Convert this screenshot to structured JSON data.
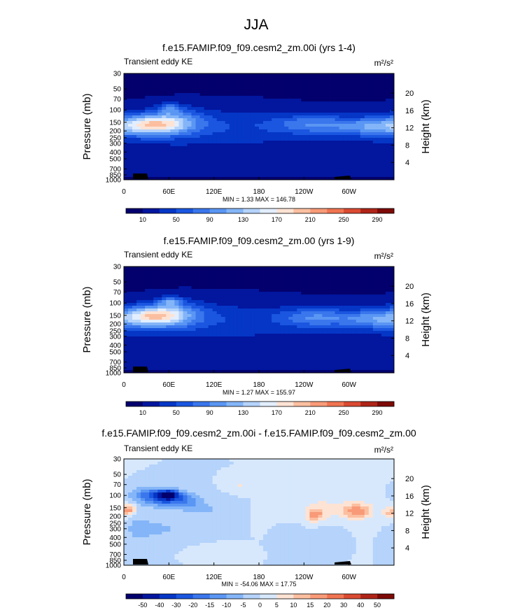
{
  "title": "JJA",
  "palettes": {
    "ke": [
      "#03006d",
      "#02169e",
      "#0536c6",
      "#1a56e0",
      "#3a76ec",
      "#5a96f3",
      "#84b5f8",
      "#b5d3fb",
      "#e2eefe",
      "#fde3d4",
      "#fbbfa0",
      "#f89a78",
      "#f07451",
      "#da4a32",
      "#b02418",
      "#7d0a06"
    ],
    "diff": [
      "#03006d",
      "#02169e",
      "#0536c6",
      "#1a56e0",
      "#3a76ec",
      "#5a96f3",
      "#84b5f8",
      "#b5d3fb",
      "#d7e8fd",
      "#fde3d4",
      "#fbbfa0",
      "#f89a78",
      "#f07451",
      "#da4a32",
      "#b02418",
      "#7d0a06"
    ]
  },
  "panels": [
    {
      "id": "p1",
      "title": "f.e15.FAMIP.f09_f09.cesm2_zm.00i (yrs 1-4)",
      "label": "Transient eddy KE",
      "units": "m²/s²",
      "stats": "MIN =   1.33  MAX = 146.78",
      "colorbar_labels": [
        "10",
        "50",
        "90",
        "130",
        "170",
        "210",
        "250",
        "290"
      ],
      "chart_data": {
        "type": "heatmap",
        "field": "Transient eddy KE",
        "units": "m2/s2",
        "min": 1.33,
        "max": 146.78,
        "levels": [
          10,
          30,
          50,
          70,
          90,
          110,
          130,
          150,
          170,
          190,
          210,
          230,
          250,
          270,
          290
        ],
        "bg_value": 8,
        "features": [
          {
            "lon": 40,
            "p": 160,
            "amp": 110,
            "wlon": 28,
            "wlog": 0.22
          },
          {
            "lon": 62,
            "p": 95,
            "amp": 65,
            "wlon": 10,
            "wlog": 0.12
          },
          {
            "lon": 75,
            "p": 140,
            "amp": 40,
            "wlon": 25,
            "wlog": 0.3
          },
          {
            "lon": 250,
            "p": 160,
            "amp": 62,
            "wlon": 38,
            "wlog": 0.22
          },
          {
            "lon": 330,
            "p": 175,
            "amp": 58,
            "wlon": 35,
            "wlog": 0.2
          },
          {
            "lon": 20,
            "p": 170,
            "amp": 45,
            "wlon": 45,
            "wlog": 0.3
          },
          {
            "lon": 120,
            "p": 160,
            "amp": 22,
            "wlon": 60,
            "wlog": 0.4
          },
          {
            "lon": 180,
            "p": 200,
            "amp": 20,
            "wlon": 200,
            "wlog": 0.45
          },
          {
            "lon": 180,
            "p": 500,
            "amp": 10,
            "wlon": 220,
            "wlog": 0.35
          }
        ]
      },
      "xticks": [
        "0",
        "60E",
        "120E",
        "180",
        "120W",
        "60W"
      ],
      "yticks": [
        "30",
        "50",
        "70",
        "100",
        "150",
        "200",
        "250",
        "300",
        "400",
        "500",
        "700",
        "850",
        "1000"
      ],
      "yticks_right": [
        "20",
        "16",
        "12",
        "8",
        "4"
      ],
      "ylabel": "Pressure (mb)",
      "ylabel_right": "Height (km)"
    },
    {
      "id": "p2",
      "title": "f.e15.FAMIP.f09_f09.cesm2_zm.00 (yrs 1-9)",
      "label": "Transient eddy KE",
      "units": "m²/s²",
      "stats": "MIN =   1.27  MAX = 155.97",
      "colorbar_labels": [
        "10",
        "50",
        "90",
        "130",
        "170",
        "210",
        "250",
        "290"
      ],
      "chart_data": {
        "type": "heatmap",
        "field": "Transient eddy KE",
        "units": "m2/s2",
        "min": 1.27,
        "max": 155.97,
        "levels": [
          10,
          30,
          50,
          70,
          90,
          110,
          130,
          150,
          170,
          190,
          210,
          230,
          250,
          270,
          290
        ],
        "bg_value": 8,
        "features": [
          {
            "lon": 42,
            "p": 150,
            "amp": 115,
            "wlon": 26,
            "wlog": 0.22
          },
          {
            "lon": 62,
            "p": 95,
            "amp": 72,
            "wlon": 10,
            "wlog": 0.12
          },
          {
            "lon": 75,
            "p": 140,
            "amp": 40,
            "wlon": 25,
            "wlog": 0.3
          },
          {
            "lon": 255,
            "p": 160,
            "amp": 65,
            "wlon": 35,
            "wlog": 0.22
          },
          {
            "lon": 335,
            "p": 170,
            "amp": 55,
            "wlon": 32,
            "wlog": 0.2
          },
          {
            "lon": 20,
            "p": 170,
            "amp": 45,
            "wlon": 45,
            "wlog": 0.3
          },
          {
            "lon": 120,
            "p": 160,
            "amp": 20,
            "wlon": 60,
            "wlog": 0.4
          },
          {
            "lon": 180,
            "p": 200,
            "amp": 20,
            "wlon": 200,
            "wlog": 0.45
          },
          {
            "lon": 180,
            "p": 500,
            "amp": 10,
            "wlon": 220,
            "wlog": 0.35
          }
        ]
      },
      "xticks": [
        "0",
        "60E",
        "120E",
        "180",
        "120W",
        "60W"
      ],
      "yticks": [
        "30",
        "50",
        "70",
        "100",
        "150",
        "200",
        "250",
        "300",
        "400",
        "500",
        "700",
        "850",
        "1000"
      ],
      "yticks_right": [
        "20",
        "16",
        "12",
        "8",
        "4"
      ],
      "ylabel": "Pressure (mb)",
      "ylabel_right": "Height (km)"
    },
    {
      "id": "p3",
      "title": "f.e15.FAMIP.f09_f09.cesm2_zm.00i - f.e15.FAMIP.f09_f09.cesm2_zm.00",
      "label": "Transient eddy KE",
      "units": "m²/s²",
      "stats": "MIN = -54.06  MAX =  17.75",
      "colorbar_labels": [
        "-50",
        "-40",
        "-30",
        "-20",
        "-15",
        "-10",
        "-5",
        "0",
        "5",
        "10",
        "15",
        "20",
        "30",
        "40",
        "50"
      ],
      "chart_data": {
        "type": "heatmap",
        "field": "Transient eddy KE difference",
        "units": "m2/s2",
        "min": -54.06,
        "max": 17.75,
        "levels": [
          -50,
          -40,
          -30,
          -20,
          -15,
          -10,
          -5,
          0,
          5,
          10,
          15,
          20,
          30,
          40,
          50
        ],
        "bg_value": 0,
        "features": [
          {
            "lon": 58,
            "p": 100,
            "amp": -54,
            "wlon": 9,
            "wlog": 0.1
          },
          {
            "lon": 52,
            "p": 110,
            "amp": -18,
            "wlon": 22,
            "wlog": 0.2
          },
          {
            "lon": 30,
            "p": 95,
            "amp": -10,
            "wlon": 16,
            "wlog": 0.15
          },
          {
            "lon": 85,
            "p": 120,
            "amp": -9,
            "wlon": 16,
            "wlog": 0.2
          },
          {
            "lon": 45,
            "p": 300,
            "amp": -6,
            "wlon": 25,
            "wlog": 0.25
          },
          {
            "lon": 6,
            "p": 160,
            "amp": 18,
            "wlon": 6,
            "wlog": 0.12
          },
          {
            "lon": 255,
            "p": 190,
            "amp": 15,
            "wlon": 8,
            "wlog": 0.14
          },
          {
            "lon": 258,
            "p": 150,
            "amp": 5,
            "wlon": 20,
            "wlog": 0.35
          },
          {
            "lon": 310,
            "p": 170,
            "amp": 15,
            "wlon": 12,
            "wlog": 0.15
          },
          {
            "lon": 310,
            "p": 150,
            "amp": 5,
            "wlon": 25,
            "wlog": 0.35
          },
          {
            "lon": 353,
            "p": 180,
            "amp": 9,
            "wlon": 6,
            "wlog": 0.15
          },
          {
            "lon": 275,
            "p": 350,
            "amp": -4,
            "wlon": 12,
            "wlog": 0.2
          },
          {
            "lon": 230,
            "p": 400,
            "amp": -4,
            "wlon": 10,
            "wlog": 0.25
          },
          {
            "lon": 155,
            "p": 70,
            "amp": 6,
            "wlon": 10,
            "wlog": 0.1
          },
          {
            "lon": 120,
            "p": 650,
            "amp": 5,
            "wlon": 15,
            "wlog": 0.1
          },
          {
            "lon": 20,
            "p": 300,
            "amp": -6,
            "wlon": 10,
            "wlog": 0.3
          },
          {
            "lon": 105,
            "p": 160,
            "amp": -6,
            "wlon": 15,
            "wlog": 0.15
          }
        ]
      },
      "xticks": [
        "0",
        "60E",
        "120E",
        "180",
        "120W",
        "60W"
      ],
      "yticks": [
        "30",
        "50",
        "70",
        "100",
        "150",
        "200",
        "250",
        "300",
        "400",
        "500",
        "700",
        "850",
        "1000"
      ],
      "yticks_right": [
        "20",
        "16",
        "12",
        "8",
        "4"
      ],
      "ylabel": "Pressure (mb)",
      "ylabel_right": "Height (km)"
    }
  ]
}
